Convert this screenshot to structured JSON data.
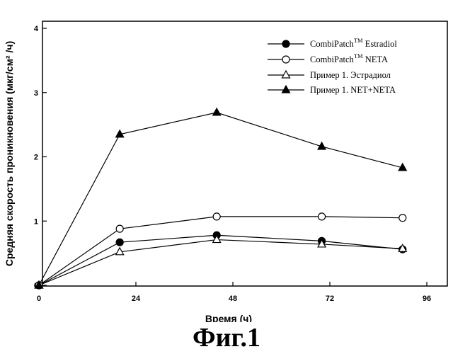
{
  "caption": "Фиг.1",
  "chart_data": {
    "type": "line",
    "xlabel": "Время (ч)",
    "ylabel": "Средняя скорость проникновения (мкг/см² /ч)",
    "xlim": [
      0,
      96
    ],
    "ylim": [
      0,
      4
    ],
    "xticks": [
      "0",
      "24",
      "48",
      "72",
      "96"
    ],
    "yticks": [
      "0",
      "1",
      "2",
      "3",
      "4"
    ],
    "grid": false,
    "legend_position": "top-right",
    "series": [
      {
        "name": "CombiPatch™ Estradiol",
        "label_main": "CombiPatch",
        "label_sup": "TM",
        "label_rest": " Estradiol",
        "marker": "filled-circle",
        "x": [
          0,
          20,
          44,
          70,
          90
        ],
        "y": [
          0,
          0.67,
          0.78,
          0.69,
          0.56
        ]
      },
      {
        "name": "CombiPatch™ NETA",
        "label_main": "CombiPatch",
        "label_sup": "TM",
        "label_rest": " NETA",
        "marker": "open-circle",
        "x": [
          0,
          20,
          44,
          70,
          90
        ],
        "y": [
          0,
          0.88,
          1.07,
          1.07,
          1.05
        ]
      },
      {
        "name": "Пример 1. Эстрадиол",
        "label_main": "Пример 1. Эстрадиол",
        "label_sup": "",
        "label_rest": "",
        "marker": "open-triangle",
        "x": [
          0,
          20,
          44,
          70,
          90
        ],
        "y": [
          0,
          0.52,
          0.71,
          0.64,
          0.57
        ]
      },
      {
        "name": "Пример 1. NET+NETA",
        "label_main": "Пример 1. NET+NETA",
        "label_sup": "",
        "label_rest": "",
        "marker": "filled-triangle",
        "x": [
          0,
          20,
          44,
          70,
          90
        ],
        "y": [
          0,
          2.35,
          2.69,
          2.16,
          1.83
        ]
      }
    ]
  }
}
